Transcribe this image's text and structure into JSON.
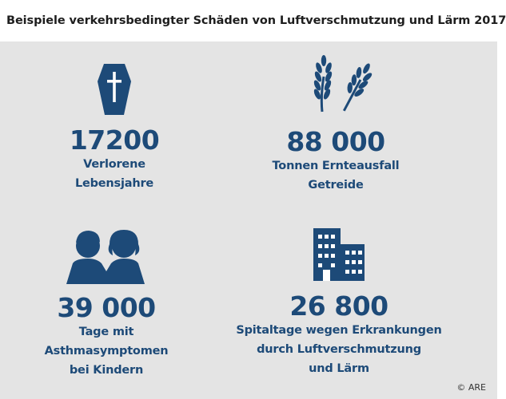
{
  "title": "Beispiele verkehrsbedingter Schäden von Luftverschmutzung und Lärm 2017",
  "items": [
    {
      "icon": "coffin-icon",
      "value": "17200",
      "label_lines": [
        "Verlorene",
        "Lebensjahre"
      ]
    },
    {
      "icon": "wheat-icon",
      "value": "88 000",
      "label_lines": [
        "Tonnen Ernteausfall",
        "Getreide"
      ]
    },
    {
      "icon": "children-icon",
      "value": "39 000",
      "label_lines": [
        "Tage mit",
        "Asthmasymptomen",
        "bei Kindern"
      ]
    },
    {
      "icon": "hospital-building-icon",
      "value": "26 800",
      "label_lines": [
        "Spitaltage wegen Erkrankungen",
        "durch Luftverschmutzung",
        "und Lärm"
      ]
    }
  ],
  "copyright": "© ARE",
  "colors": {
    "accent": "#1d4a78",
    "background": "#e4e4e4"
  }
}
